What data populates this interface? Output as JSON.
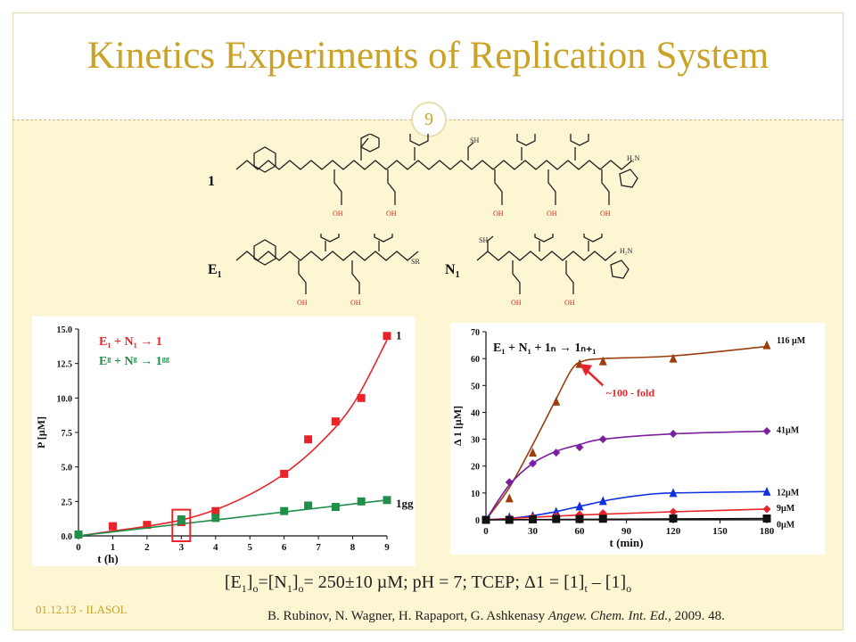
{
  "slide": {
    "title": "Kinetics Experiments of Replication System",
    "page_number": "9",
    "footer_date": "01.12.13 - ILASOL",
    "reference_authors": "B. Rubinov, N. Wagner, H. Rapaport, G. Ashkenasy ",
    "reference_journal": "Angew. Chem. Int. Ed.,",
    "reference_year": " 2009. 48."
  },
  "structures": {
    "label_1": "1",
    "label_E1": "E",
    "label_E1_sub": "1",
    "label_N1": "N",
    "label_N1_sub": "1",
    "sh_label": "SH",
    "sr_label": "SR",
    "acid_label": "OH",
    "amide_label": "H₂N"
  },
  "conditions": {
    "part1": "[E",
    "sub1": "1",
    "part2": "]",
    "sub2": "o",
    "part3": "=[N",
    "sub3": "1",
    "part4": "]",
    "sub4": "o",
    "part5": "= 250±10 µM; pH = 7; TCEP; Δ1 = [1]",
    "sub5": "t",
    "part6": " – [1]",
    "sub6": "o"
  },
  "colors": {
    "red": "#e8242a",
    "green": "#1f8f4a",
    "brown": "#9b3d0e",
    "purple": "#7a1fa0",
    "blue": "#1030e0",
    "black": "#111111",
    "gold": "#c9a227"
  },
  "chart_data": [
    {
      "type": "scatter",
      "xlabel": "t (h)",
      "ylabel": "P [µM]",
      "xlim": [
        0,
        9
      ],
      "ylim": [
        0,
        15
      ],
      "x_ticks": [
        "0",
        "1",
        "2",
        "3",
        "4",
        "5",
        "6",
        "7",
        "8",
        "9"
      ],
      "y_ticks": [
        "0.0",
        "2.5",
        "5.0",
        "7.5",
        "10.0",
        "12.5",
        "15.0"
      ],
      "legend": [
        {
          "text": "E₁ + N₁ → 1",
          "color": "#e8242a"
        },
        {
          "text": "Eᵍ + Nᵍ → 1ᵍᵍ",
          "color": "#1f8f4a"
        }
      ],
      "series": [
        {
          "name": "1",
          "color": "#e8242a",
          "x": [
            0,
            1,
            2,
            3,
            4,
            6,
            6.7,
            7.5,
            8.25,
            9
          ],
          "y": [
            0.1,
            0.7,
            0.8,
            1.0,
            1.8,
            4.5,
            7.0,
            8.3,
            10.0,
            14.5
          ],
          "fit": [
            [
              0,
              0
            ],
            [
              1,
              0.35
            ],
            [
              2,
              0.7
            ],
            [
              3,
              1.15
            ],
            [
              4,
              1.9
            ],
            [
              5,
              3.0
            ],
            [
              6,
              4.5
            ],
            [
              7,
              6.6
            ],
            [
              8,
              9.5
            ],
            [
              9,
              14.2
            ]
          ]
        },
        {
          "name": "1gg",
          "color": "#1f8f4a",
          "x": [
            0,
            3,
            4,
            6,
            6.7,
            7.5,
            8.25,
            9
          ],
          "y": [
            0.1,
            1.2,
            1.3,
            1.8,
            2.2,
            2.1,
            2.5,
            2.6
          ],
          "fit": [
            [
              0,
              0
            ],
            [
              9,
              2.6
            ]
          ]
        }
      ],
      "series_end_labels": [
        "1",
        "1gg"
      ],
      "highlight_box_x": 3
    },
    {
      "type": "line",
      "xlabel": "t (min)",
      "ylabel": "Δ 1 [µM]",
      "title": "E₁ + N₁ + 1ₙ → 1ₙ₊₁",
      "xlim": [
        0,
        180
      ],
      "ylim": [
        0,
        70
      ],
      "x_ticks": [
        "0",
        "30",
        "60",
        "90",
        "120",
        "150",
        "180"
      ],
      "y_ticks": [
        "0",
        "10",
        "20",
        "30",
        "40",
        "50",
        "60",
        "70"
      ],
      "annotation": "~100 - fold",
      "series": [
        {
          "name": "116 µM",
          "color": "#9b3d0e",
          "marker": "triangle",
          "x": [
            0,
            15,
            30,
            45,
            60,
            75,
            120,
            180
          ],
          "y": [
            0,
            8,
            25,
            44,
            58,
            59,
            60,
            65
          ],
          "fit": [
            [
              0,
              0
            ],
            [
              15,
              12
            ],
            [
              30,
              28
            ],
            [
              45,
              45
            ],
            [
              55,
              56
            ],
            [
              62,
              59
            ],
            [
              75,
              60
            ],
            [
              120,
              61
            ],
            [
              180,
              64.5
            ]
          ]
        },
        {
          "name": "41µM",
          "color": "#7a1fa0",
          "marker": "diamond",
          "x": [
            0,
            15,
            30,
            45,
            60,
            75,
            120,
            180
          ],
          "y": [
            0,
            14,
            21,
            25,
            27,
            30,
            32,
            33
          ],
          "fit": [
            [
              0,
              0
            ],
            [
              15,
              13
            ],
            [
              30,
              21
            ],
            [
              45,
              25.5
            ],
            [
              60,
              28
            ],
            [
              75,
              30
            ],
            [
              120,
              32
            ],
            [
              180,
              33
            ]
          ]
        },
        {
          "name": "12µM",
          "color": "#1030e0",
          "marker": "triangle",
          "x": [
            0,
            15,
            30,
            45,
            60,
            75,
            120,
            180
          ],
          "y": [
            0,
            1,
            1.5,
            3,
            5,
            7,
            10,
            10.5
          ],
          "fit": [
            [
              0,
              0
            ],
            [
              20,
              0.8
            ],
            [
              40,
              2.5
            ],
            [
              60,
              5
            ],
            [
              80,
              7.5
            ],
            [
              100,
              9.2
            ],
            [
              120,
              10
            ],
            [
              180,
              10.5
            ]
          ]
        },
        {
          "name": "9µM",
          "color": "#e8242a",
          "marker": "diamond",
          "x": [
            0,
            15,
            30,
            45,
            60,
            75,
            120,
            180
          ],
          "y": [
            0,
            0.5,
            1,
            1.5,
            2,
            2.5,
            3,
            4
          ],
          "fit": [
            [
              0,
              0
            ],
            [
              60,
              1.8
            ],
            [
              120,
              3
            ],
            [
              180,
              4
            ]
          ]
        },
        {
          "name": "0µM",
          "color": "#111111",
          "marker": "square",
          "x": [
            0,
            15,
            30,
            45,
            60,
            75,
            120,
            180
          ],
          "y": [
            0,
            0,
            0.2,
            0.3,
            0.3,
            0.4,
            0.5,
            0.5
          ],
          "fit": [
            [
              0,
              0
            ],
            [
              180,
              0.5
            ]
          ]
        }
      ]
    }
  ]
}
